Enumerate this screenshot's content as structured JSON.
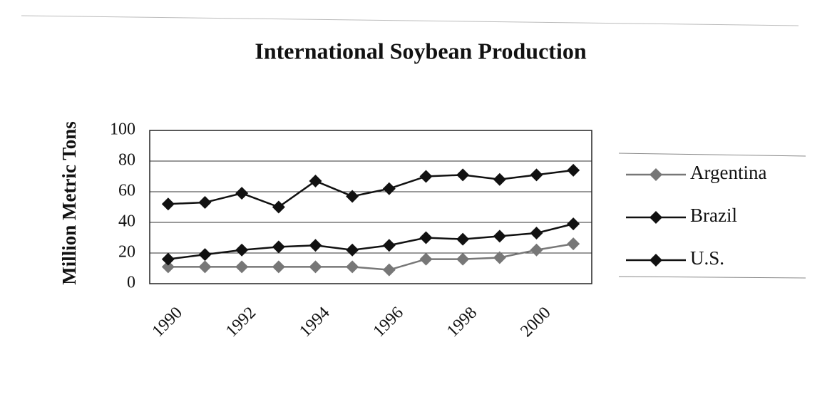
{
  "chart_data": {
    "type": "line",
    "title": "International Soybean Production",
    "y_label": "Million Metric Tons",
    "categories": [
      "1990",
      null,
      "1992",
      null,
      "1994",
      null,
      "1996",
      null,
      "1998",
      null,
      "2000",
      null
    ],
    "series": [
      {
        "name": "Argentina",
        "color": "#777777",
        "values": [
          11,
          11,
          11,
          11,
          11,
          11,
          9,
          16,
          16,
          17,
          22,
          26
        ]
      },
      {
        "name": "Brazil",
        "color": "#111111",
        "values": [
          16,
          19,
          22,
          24,
          25,
          22,
          25,
          30,
          29,
          31,
          33,
          39
        ]
      },
      {
        "name": "U.S.",
        "color": "#111111",
        "values": [
          52,
          53,
          59,
          50,
          67,
          57,
          62,
          70,
          71,
          68,
          71,
          74
        ]
      }
    ],
    "ylim": [
      0,
      100
    ],
    "yticks": [
      0,
      20,
      40,
      60,
      80,
      100
    ],
    "grid": true,
    "legend": "right"
  }
}
